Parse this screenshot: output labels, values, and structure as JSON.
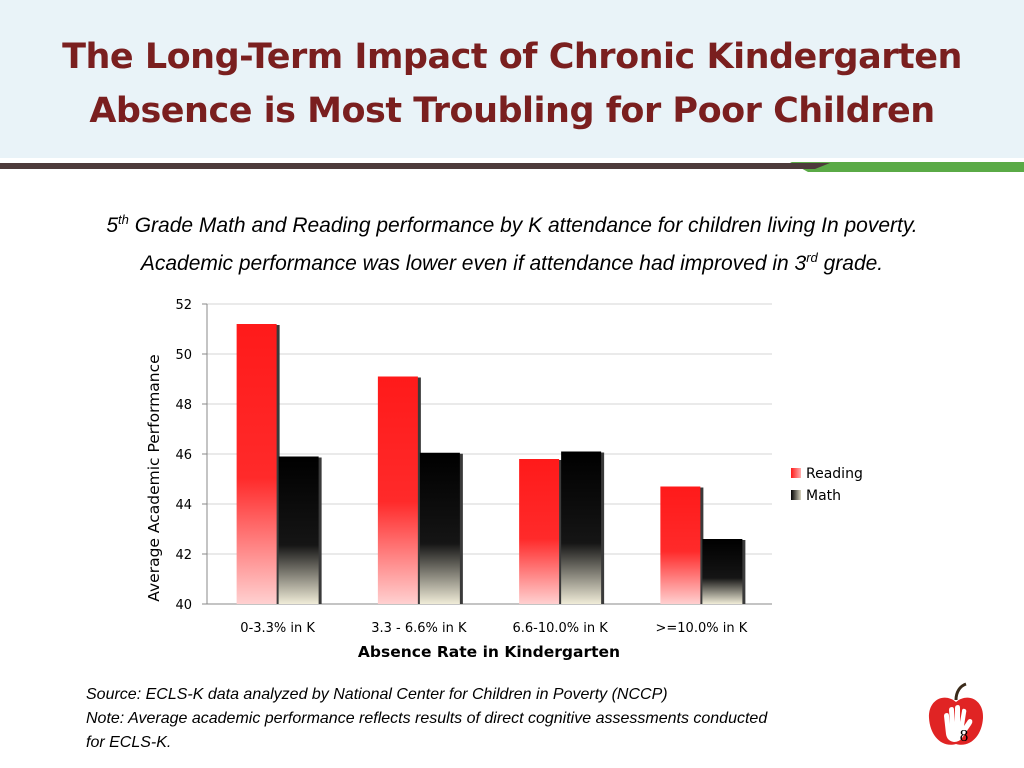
{
  "slide": {
    "title_line1": "The Long-Term Impact of Chronic Kindergarten",
    "title_line2": "Absence is Most Troubling for Poor Children",
    "subtitle_pre": "5",
    "subtitle_sup1": "th",
    "subtitle_line1_rest": " Grade Math and Reading performance by K attendance for children living In poverty.",
    "subtitle_line2_pre": "Academic performance was lower even if attendance had improved in 3",
    "subtitle_sup2": "rd",
    "subtitle_line2_post": " grade.",
    "source": "Source:  ECLS-K  data analyzed by National Center for Children in Poverty (NCCP)",
    "note_line1": "Note:  Average academic performance reflects results of direct cognitive assessments conducted",
    "note_line2": "for ECLS-K.",
    "page_number": "8"
  },
  "colors": {
    "title": "#7a1f1f",
    "band_dark": "#4d3b3b",
    "band_green": "#5aaa46",
    "reading": "#ff2020",
    "math": "#000000"
  },
  "chart_data": {
    "type": "bar",
    "title": "",
    "xlabel": "Absence Rate in Kindergarten",
    "ylabel": "Average Academic Performance",
    "ylim": [
      40,
      52
    ],
    "yticks": [
      40,
      42,
      44,
      46,
      48,
      50,
      52
    ],
    "grid": true,
    "legend": "right",
    "categories": [
      "0-3.3% in K",
      "3.3 - 6.6% in K",
      "6.6-10.0% in K",
      ">=10.0% in K"
    ],
    "series": [
      {
        "name": "Reading",
        "values": [
          51.2,
          49.1,
          45.8,
          44.7
        ]
      },
      {
        "name": "Math",
        "values": [
          45.9,
          46.05,
          46.1,
          42.6
        ]
      }
    ]
  }
}
